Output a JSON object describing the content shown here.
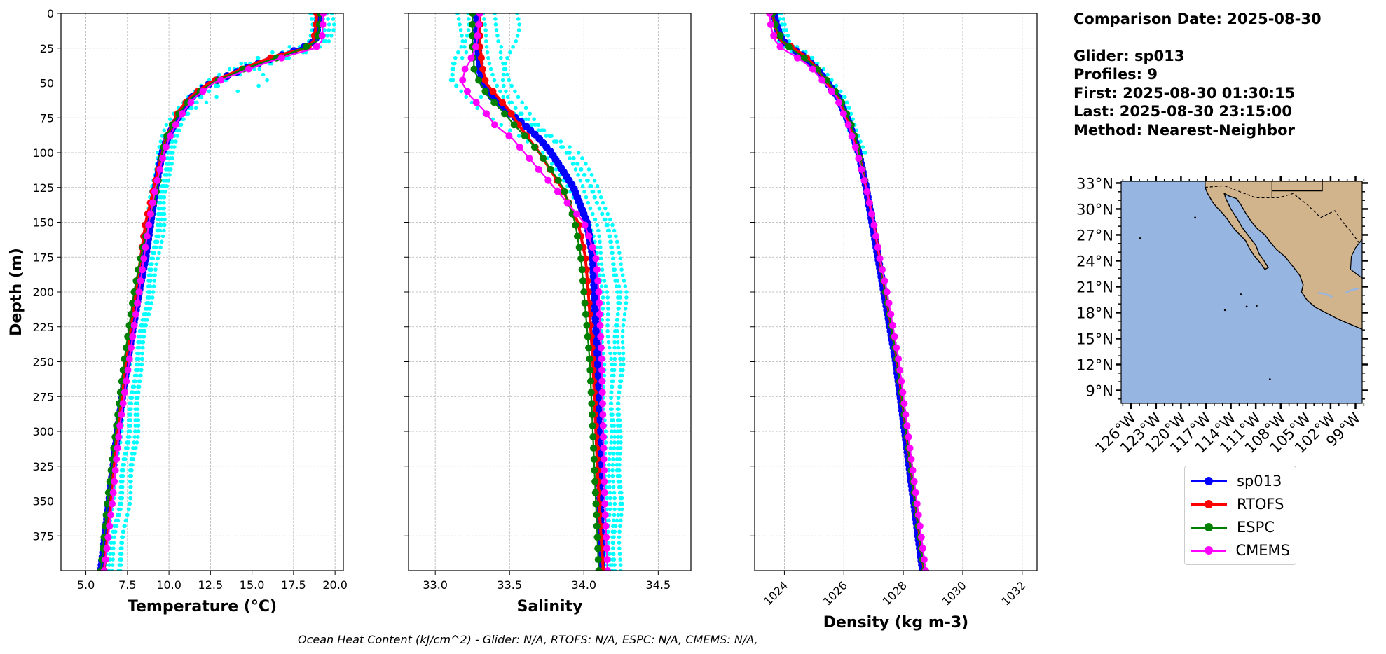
{
  "chart_data": {
    "type": "line",
    "depth_ticks": [
      0,
      25,
      50,
      75,
      100,
      125,
      150,
      175,
      200,
      225,
      250,
      275,
      300,
      325,
      350,
      375
    ],
    "ylabel": "Depth (m)",
    "ylim": [
      400,
      0
    ],
    "series_colors": {
      "sp013": "#0000ff",
      "RTOFS": "#ff0000",
      "ESPC": "#008000",
      "CMEMS": "#ff00ff",
      "glider_profiles": "#00ffff"
    },
    "panels": [
      {
        "name": "temperature",
        "xlabel": "Temperature (°C)",
        "xlim": [
          3.5,
          20.5
        ],
        "xticks": [
          5.0,
          7.5,
          10.0,
          12.5,
          15.0,
          17.5,
          20.0
        ],
        "xtick_labels": [
          "5.0",
          "7.5",
          "10.0",
          "12.5",
          "15.0",
          "17.5",
          "20.0"
        ],
        "profiles": {
          "depths": [
            0,
            10,
            20,
            25,
            30,
            35,
            40,
            50,
            60,
            70,
            80,
            90,
            100,
            125,
            150,
            175,
            200,
            250,
            300,
            350,
            400
          ],
          "sp013": [
            19.0,
            18.95,
            18.8,
            18.0,
            16.8,
            15.6,
            14.5,
            12.5,
            11.4,
            10.8,
            10.3,
            9.9,
            9.6,
            9.2,
            8.9,
            8.6,
            8.2,
            7.5,
            6.9,
            6.4,
            5.9
          ],
          "RTOFS": [
            18.9,
            18.85,
            18.7,
            18.3,
            16.6,
            15.4,
            14.4,
            12.4,
            11.3,
            10.6,
            10.2,
            9.8,
            9.6,
            9.1,
            8.6,
            8.3,
            8.0,
            7.4,
            6.9,
            6.5,
            6.1
          ],
          "ESPC": [
            19.1,
            19.05,
            18.9,
            18.1,
            17.0,
            15.7,
            14.5,
            12.6,
            11.4,
            10.7,
            10.2,
            9.8,
            9.6,
            9.3,
            8.8,
            8.3,
            7.9,
            7.3,
            6.8,
            6.3,
            5.9
          ],
          "CMEMS": [
            19.3,
            19.25,
            19.2,
            18.8,
            17.3,
            16.0,
            14.8,
            12.7,
            11.6,
            10.9,
            10.4,
            10.0,
            9.7,
            9.2,
            8.8,
            8.5,
            8.2,
            7.6,
            7.0,
            6.6,
            6.1
          ]
        },
        "glider_profiles": [
          [
            18.7,
            18.8,
            18.5,
            17.7,
            16.9,
            15.2,
            14.0,
            12.6,
            11.5,
            11.0,
            10.4,
            10.0,
            9.9,
            9.6,
            9.3,
            9.0,
            8.7,
            8.0,
            7.5,
            7.0,
            6.3
          ],
          [
            19.5,
            19.6,
            19.4,
            19.0,
            17.8,
            16.5,
            15.2,
            13.0,
            11.9,
            11.2,
            10.7,
            10.3,
            10.1,
            9.7,
            9.4,
            9.1,
            8.8,
            8.1,
            7.6,
            7.1,
            6.5
          ],
          [
            19.8,
            19.9,
            19.6,
            18.2,
            16.0,
            14.6,
            13.7,
            12.1,
            11.1,
            10.4,
            9.9,
            9.6,
            9.3,
            9.0,
            8.7,
            8.4,
            8.1,
            7.6,
            7.1,
            6.6,
            6.1
          ],
          [
            19.2,
            19.3,
            19.3,
            18.9,
            17.6,
            16.3,
            15.5,
            16.0,
            12.8,
            11.3,
            10.6,
            10.2,
            9.9,
            9.8,
            9.7,
            9.4,
            9.0,
            8.3,
            8.1,
            7.6,
            6.9
          ],
          [
            18.5,
            18.6,
            18.4,
            17.0,
            15.8,
            14.8,
            14.2,
            13.2,
            11.8,
            11.1,
            10.8,
            10.5,
            10.2,
            9.9,
            9.5,
            9.1,
            8.8,
            8.3,
            7.9,
            7.6,
            7.0
          ]
        ]
      },
      {
        "name": "salinity",
        "xlabel": "Salinity",
        "xlim": [
          32.82,
          34.72
        ],
        "xticks": [
          33.0,
          33.5,
          34.0,
          34.5
        ],
        "xtick_labels": [
          "33.0",
          "33.5",
          "34.0",
          "34.5"
        ],
        "profiles": {
          "depths": [
            0,
            10,
            20,
            25,
            30,
            35,
            40,
            50,
            60,
            70,
            80,
            90,
            100,
            125,
            150,
            175,
            200,
            250,
            300,
            350,
            400
          ],
          "sp013": [
            33.28,
            33.28,
            33.28,
            33.29,
            33.29,
            33.3,
            33.3,
            33.32,
            33.38,
            33.48,
            33.6,
            33.7,
            33.78,
            33.93,
            34.02,
            34.06,
            34.07,
            34.09,
            34.1,
            34.11,
            34.12
          ],
          "RTOFS": [
            33.3,
            33.3,
            33.3,
            33.3,
            33.31,
            33.31,
            33.32,
            33.34,
            33.42,
            33.5,
            33.56,
            33.63,
            33.7,
            33.85,
            33.96,
            34.01,
            34.03,
            34.06,
            34.08,
            34.1,
            34.13
          ],
          "ESPC": [
            33.25,
            33.25,
            33.25,
            33.25,
            33.25,
            33.26,
            33.26,
            33.3,
            33.36,
            33.45,
            33.53,
            33.62,
            33.7,
            33.86,
            33.94,
            33.98,
            34.0,
            34.04,
            34.06,
            34.08,
            34.1
          ],
          "CMEMS": [
            33.3,
            33.29,
            33.28,
            33.27,
            33.25,
            33.23,
            33.2,
            33.18,
            33.24,
            33.33,
            33.4,
            33.52,
            33.6,
            33.8,
            34.0,
            34.08,
            34.1,
            34.12,
            34.13,
            34.14,
            34.16
          ]
        },
        "glider_profiles": [
          [
            33.15,
            33.16,
            33.18,
            33.2,
            33.22,
            33.14,
            33.13,
            33.1,
            33.3,
            33.5,
            33.65,
            33.78,
            33.9,
            34.05,
            34.15,
            34.2,
            34.22,
            34.24,
            34.24,
            34.25,
            34.24
          ],
          [
            33.4,
            33.4,
            33.42,
            33.45,
            33.44,
            33.46,
            33.48,
            33.5,
            33.55,
            33.62,
            33.7,
            33.8,
            33.88,
            34.0,
            34.08,
            34.12,
            34.15,
            34.18,
            34.2,
            34.2,
            34.2
          ],
          [
            33.22,
            33.22,
            33.2,
            33.17,
            33.15,
            33.13,
            33.12,
            33.12,
            33.2,
            33.3,
            33.45,
            33.6,
            33.72,
            33.9,
            34.03,
            34.1,
            34.12,
            34.13,
            34.14,
            34.15,
            34.15
          ],
          [
            33.55,
            33.56,
            33.54,
            33.52,
            33.5,
            33.48,
            33.47,
            33.45,
            33.48,
            33.55,
            33.66,
            33.82,
            33.96,
            34.1,
            34.18,
            34.25,
            34.28,
            34.26,
            34.22,
            34.24,
            34.18
          ],
          [
            33.32,
            33.33,
            33.34,
            33.35,
            33.36,
            33.37,
            33.38,
            33.4,
            33.45,
            33.56,
            33.68,
            33.8,
            33.9,
            34.06,
            34.14,
            34.2,
            34.24,
            34.2,
            34.18,
            34.17,
            34.17
          ]
        ]
      },
      {
        "name": "density",
        "xlabel": "Density (kg m-3)",
        "xlim": [
          1023,
          1032.5
        ],
        "xticks": [
          1024,
          1026,
          1028,
          1030,
          1032
        ],
        "xtick_labels": [
          "1024",
          "1026",
          "1028",
          "1030",
          "1032"
        ],
        "profiles": {
          "depths": [
            0,
            10,
            20,
            25,
            30,
            35,
            40,
            50,
            60,
            70,
            80,
            90,
            100,
            125,
            150,
            175,
            200,
            250,
            300,
            350,
            400
          ],
          "sp013": [
            1023.65,
            1023.75,
            1023.95,
            1024.25,
            1024.6,
            1024.85,
            1025.1,
            1025.45,
            1025.8,
            1026.0,
            1026.2,
            1026.35,
            1026.5,
            1026.75,
            1026.95,
            1027.15,
            1027.35,
            1027.75,
            1028.05,
            1028.35,
            1028.65
          ],
          "RTOFS": [
            1023.6,
            1023.7,
            1023.9,
            1024.3,
            1024.65,
            1024.9,
            1025.1,
            1025.45,
            1025.8,
            1026.0,
            1026.2,
            1026.35,
            1026.5,
            1026.75,
            1027.0,
            1027.2,
            1027.4,
            1027.8,
            1028.1,
            1028.4,
            1028.7
          ],
          "ESPC": [
            1023.6,
            1023.72,
            1023.95,
            1024.2,
            1024.55,
            1024.85,
            1025.1,
            1025.5,
            1025.85,
            1026.05,
            1026.25,
            1026.4,
            1026.5,
            1026.75,
            1027.0,
            1027.2,
            1027.4,
            1027.8,
            1028.1,
            1028.4,
            1028.7
          ],
          "CMEMS": [
            1023.5,
            1023.55,
            1023.7,
            1023.9,
            1024.3,
            1024.65,
            1024.95,
            1025.35,
            1025.75,
            1025.95,
            1026.15,
            1026.3,
            1026.45,
            1026.75,
            1027.0,
            1027.2,
            1027.45,
            1027.85,
            1028.15,
            1028.45,
            1028.75
          ]
        },
        "glider_profiles": [
          [
            1023.8,
            1023.9,
            1024.0,
            1024.4,
            1024.8,
            1025.0,
            1025.2,
            1025.5,
            1025.9,
            1026.1,
            1026.3,
            1026.45,
            1026.6
          ],
          [
            1023.55,
            1023.65,
            1023.8,
            1024.0,
            1024.45,
            1024.8,
            1025.05,
            1025.4,
            1025.7,
            1025.95,
            1026.15,
            1026.3,
            1026.45
          ],
          [
            1023.9,
            1024.0,
            1024.15,
            1024.5,
            1024.9,
            1025.1,
            1025.35,
            1025.65,
            1026.0,
            1026.2,
            1026.4,
            1026.55,
            1026.7
          ]
        ],
        "glider_depths": [
          0,
          10,
          20,
          25,
          30,
          35,
          40,
          50,
          60,
          70,
          80,
          90,
          100
        ]
      }
    ],
    "map": {
      "lat_labels": [
        "33°N",
        "30°N",
        "27°N",
        "24°N",
        "21°N",
        "18°N",
        "15°N",
        "12°N",
        "9°N"
      ],
      "lat_values": [
        33,
        30,
        27,
        24,
        21,
        18,
        15,
        12,
        9
      ],
      "lon_labels": [
        "126°W",
        "123°W",
        "120°W",
        "117°W",
        "114°W",
        "111°W",
        "108°W",
        "105°W",
        "102°W",
        "99°W"
      ],
      "lon_values": [
        -126,
        -123,
        -120,
        -117,
        -114,
        -111,
        -108,
        -105,
        -102,
        -99
      ],
      "lon_range": [
        -127.2,
        -98.2
      ],
      "lat_range": [
        7.5,
        33.2
      ],
      "ocean_color": "#96b5e1",
      "land_color": "#d2b48c"
    }
  },
  "info": {
    "comparison_date": "Comparison Date: 2025-08-30",
    "glider": "Glider: sp013",
    "profiles": "Profiles: 9",
    "first": "First: 2025-08-30 01:30:15",
    "last": "Last: 2025-08-30 23:15:00",
    "method": "Method: Nearest-Neighbor"
  },
  "legend": {
    "items": [
      {
        "label": "sp013",
        "color": "#0000ff"
      },
      {
        "label": "RTOFS",
        "color": "#ff0000"
      },
      {
        "label": "ESPC",
        "color": "#008000"
      },
      {
        "label": "CMEMS",
        "color": "#ff00ff"
      }
    ]
  },
  "footer": {
    "ohc": "Ocean Heat Content (kJ/cm^2) - Glider: N/A,  RTOFS: N/A,  ESPC: N/A,  CMEMS: N/A,"
  }
}
